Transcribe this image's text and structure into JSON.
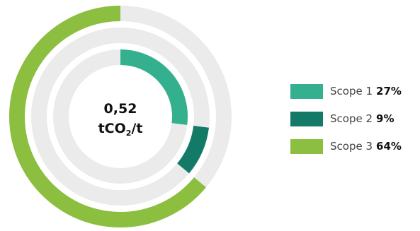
{
  "chart_data": {
    "type": "donut",
    "center": {
      "value": "0,52",
      "unit_prefix": "tCO",
      "unit_subscript": "2",
      "unit_suffix": "/t"
    },
    "series": [
      {
        "name": "Scope 1",
        "value": 27,
        "label": "27%",
        "color": "#34b08e"
      },
      {
        "name": "Scope 2",
        "value": 9,
        "label": "9%",
        "color": "#137a68"
      },
      {
        "name": "Scope 3",
        "value": 64,
        "label": "64%",
        "color": "#8cbf3f"
      }
    ],
    "track_color": "#ebebeb",
    "legend_position": "right"
  }
}
